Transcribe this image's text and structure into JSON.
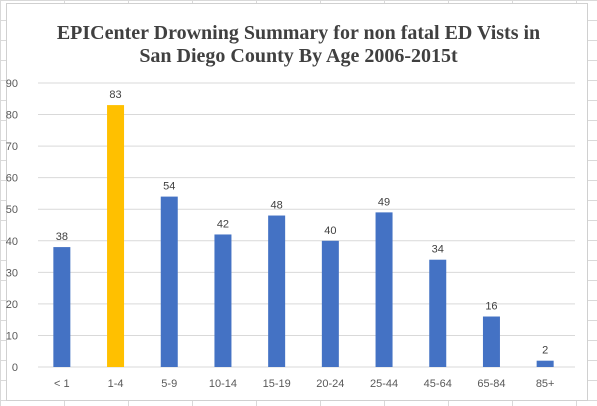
{
  "chart_data": {
    "type": "bar",
    "title_lines": [
      "EPICenter Drowning Summary for non fatal ED Vists in",
      "San Diego County By Age 2006-2015t"
    ],
    "categories": [
      "< 1",
      "1-4",
      "5-9",
      "10-14",
      "15-19",
      "20-24",
      "25-44",
      "45-64",
      "65-84",
      "85+"
    ],
    "values": [
      38,
      83,
      54,
      42,
      48,
      40,
      49,
      34,
      16,
      2
    ],
    "highlight_index": 1,
    "colors": {
      "bar": "#4472c4",
      "highlight": "#ffc000"
    },
    "yticks": [
      0,
      10,
      20,
      30,
      40,
      50,
      60,
      70,
      80,
      90
    ],
    "ylim": [
      0,
      90
    ],
    "grid": true,
    "legend": "none",
    "data_labels": true,
    "xlabel": "",
    "ylabel": ""
  }
}
